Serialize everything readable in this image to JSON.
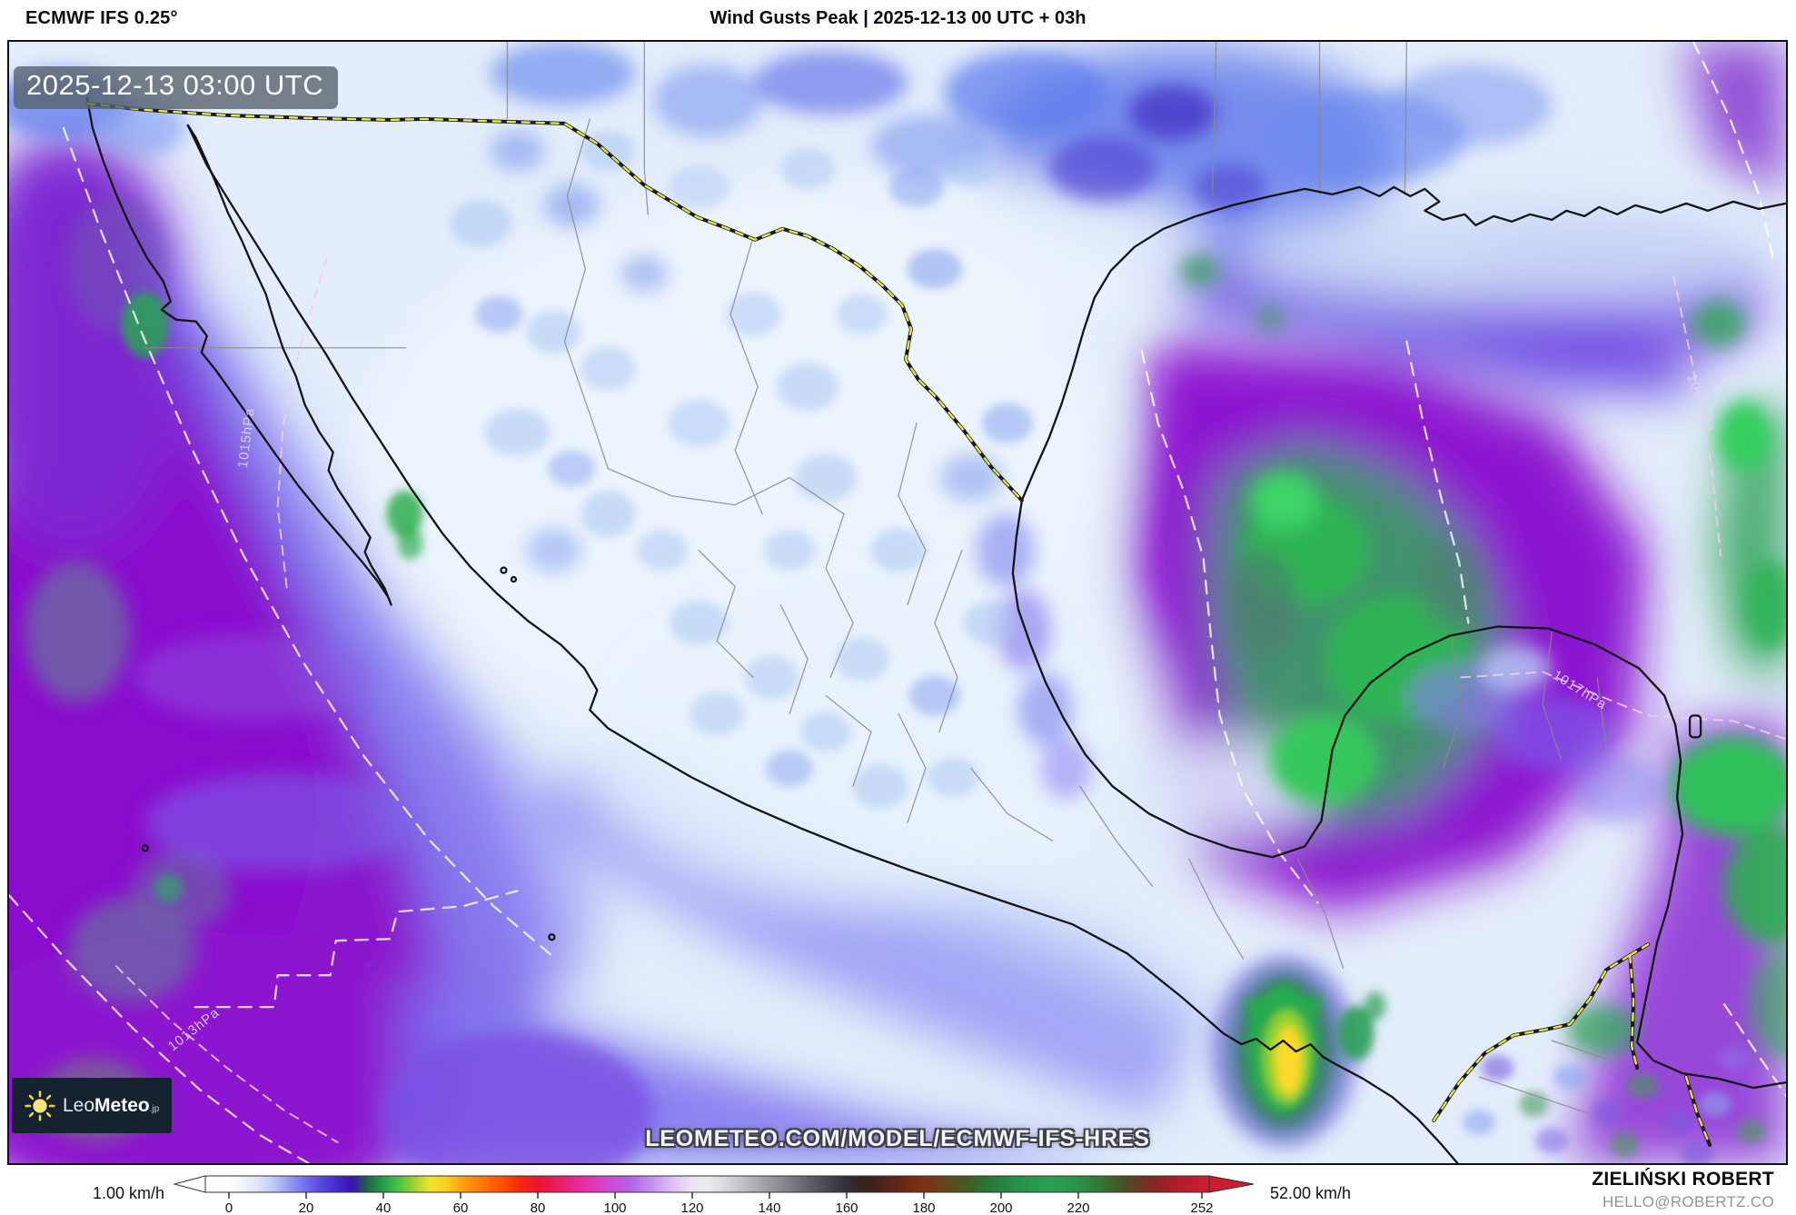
{
  "header": {
    "model": "ECMWF IFS 0.25°",
    "title": "Wind Gusts Peak | 2025-12-13 00 UTC + 03h"
  },
  "map": {
    "timestamp": "2025-12-13 03:00 UTC",
    "watermark": "LEOMETEO.COM/MODEL/ECMWF-IFS-HRES",
    "logo": {
      "name_light": "Leo",
      "name_bold": "Meteo",
      "suffix": ".jp"
    },
    "isobars": [
      {
        "label": "1015hPa"
      },
      {
        "label": "1013hPa"
      },
      {
        "label": "1017hPa"
      },
      {
        "label": "1019hPa"
      }
    ]
  },
  "legend": {
    "min_label": "1.00 km/h",
    "max_label": "52.00 km/h",
    "unit": "km/h",
    "range": [
      0,
      252
    ],
    "ticks": [
      "0",
      "20",
      "40",
      "60",
      "80",
      "100",
      "120",
      "140",
      "160",
      "180",
      "200",
      "220",
      "252"
    ],
    "stops": [
      {
        "v": 0,
        "c": "#fdfeff"
      },
      {
        "v": 4,
        "c": "#eef3fc"
      },
      {
        "v": 8,
        "c": "#d9e4f8"
      },
      {
        "v": 12,
        "c": "#b6c6f4"
      },
      {
        "v": 16,
        "c": "#8e99f0"
      },
      {
        "v": 20,
        "c": "#6f6cec"
      },
      {
        "v": 24,
        "c": "#5847e0"
      },
      {
        "v": 28,
        "c": "#4629cf"
      },
      {
        "v": 32,
        "c": "#3812b4"
      },
      {
        "v": 36,
        "c": "#1f6a44"
      },
      {
        "v": 40,
        "c": "#22a14a"
      },
      {
        "v": 44,
        "c": "#4cc342"
      },
      {
        "v": 48,
        "c": "#9ed32e"
      },
      {
        "v": 52,
        "c": "#f0e32a"
      },
      {
        "v": 56,
        "c": "#ffd01e"
      },
      {
        "v": 60,
        "c": "#ffa410"
      },
      {
        "v": 64,
        "c": "#ff8508"
      },
      {
        "v": 68,
        "c": "#ff6405"
      },
      {
        "v": 72,
        "c": "#fc4503"
      },
      {
        "v": 76,
        "c": "#f42410"
      },
      {
        "v": 80,
        "c": "#ee1430"
      },
      {
        "v": 84,
        "c": "#ec1a55"
      },
      {
        "v": 88,
        "c": "#e9227f"
      },
      {
        "v": 92,
        "c": "#e32fa6"
      },
      {
        "v": 96,
        "c": "#d83fc6"
      },
      {
        "v": 100,
        "c": "#c84fdb"
      },
      {
        "v": 104,
        "c": "#b263e8"
      },
      {
        "v": 108,
        "c": "#be84ef"
      },
      {
        "v": 112,
        "c": "#d2a6f4"
      },
      {
        "v": 116,
        "c": "#e4c8f7"
      },
      {
        "v": 120,
        "c": "#efe3f5"
      },
      {
        "v": 124,
        "c": "#ececee"
      },
      {
        "v": 128,
        "c": "#dbdbdf"
      },
      {
        "v": 132,
        "c": "#c6c6cb"
      },
      {
        "v": 136,
        "c": "#b0b0b6"
      },
      {
        "v": 140,
        "c": "#9a9aa1"
      },
      {
        "v": 144,
        "c": "#84848b"
      },
      {
        "v": 148,
        "c": "#6d6d75"
      },
      {
        "v": 152,
        "c": "#57575f"
      },
      {
        "v": 156,
        "c": "#42424a"
      },
      {
        "v": 160,
        "c": "#303038"
      },
      {
        "v": 164,
        "c": "#33231e"
      },
      {
        "v": 168,
        "c": "#47221a"
      },
      {
        "v": 172,
        "c": "#5c2618"
      },
      {
        "v": 176,
        "c": "#712a16"
      },
      {
        "v": 180,
        "c": "#7e3015"
      },
      {
        "v": 184,
        "c": "#6d4018"
      },
      {
        "v": 188,
        "c": "#55511c"
      },
      {
        "v": 192,
        "c": "#3c6222"
      },
      {
        "v": 196,
        "c": "#2a7430"
      },
      {
        "v": 200,
        "c": "#228440"
      },
      {
        "v": 204,
        "c": "#25904a"
      },
      {
        "v": 208,
        "c": "#28994f"
      },
      {
        "v": 212,
        "c": "#2a9e51"
      },
      {
        "v": 216,
        "c": "#2a9b4e"
      },
      {
        "v": 220,
        "c": "#299247"
      },
      {
        "v": 224,
        "c": "#2d8038"
      },
      {
        "v": 228,
        "c": "#38682c"
      },
      {
        "v": 232,
        "c": "#4c4f24"
      },
      {
        "v": 236,
        "c": "#6c3723"
      },
      {
        "v": 240,
        "c": "#8c2424"
      },
      {
        "v": 244,
        "c": "#a81e28"
      },
      {
        "v": 248,
        "c": "#bc1c2c"
      },
      {
        "v": 252,
        "c": "#c81e30"
      }
    ]
  },
  "credits": {
    "author": "ZIELIŃSKI ROBERT",
    "email": "HELLO@ROBERTZ.CO"
  },
  "colors": {
    "ocean_purple": "#8a12cc",
    "ocean_violet": "#6d55e6",
    "land_light": "#e3edfb",
    "gust_green": "#2eb455",
    "jet_yellow": "#ffd92b",
    "border_yellow": "#e8e84a",
    "badge_bg": "rgba(88,99,110,0.80)",
    "logo_bg": "#152330",
    "logo_sun": "#f5d44a",
    "email_gray": "#949494"
  }
}
